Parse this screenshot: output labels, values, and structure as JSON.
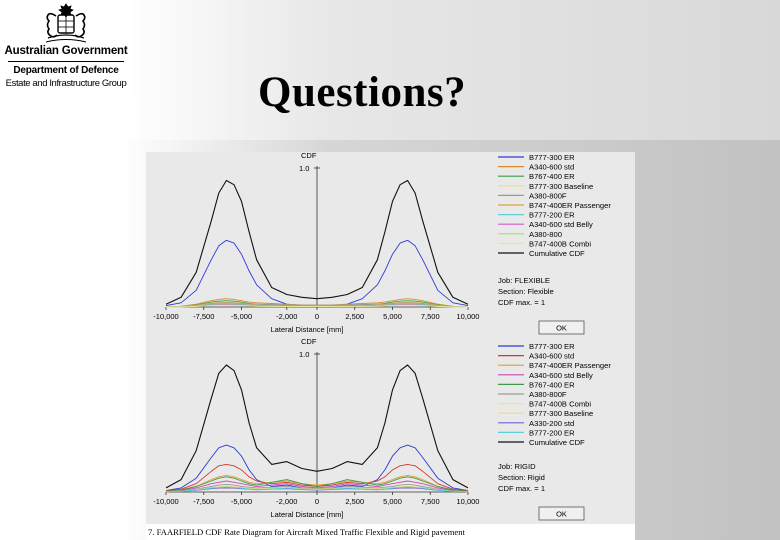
{
  "header": {
    "org_lines": [
      "Australian Government",
      "Department of Defence",
      "Estate and Infrastructure Group"
    ],
    "crest_icon": "coat-of-arms-icon"
  },
  "slide": {
    "title": "Questions?"
  },
  "figure": {
    "caption": "7.  FAARFIELD CDF Rate Diagram for Aircraft Mixed Traffic Flexible and Rigid pavement"
  },
  "chart_data": [
    {
      "type": "line",
      "title": "",
      "ylabel": "CDF",
      "xlabel": "Lateral Distance [mm]",
      "y_tick_labels": [
        "1.0"
      ],
      "x_tick_labels": [
        "-10,000",
        "-7,500",
        "-5,000",
        "-2,000",
        "0",
        "2,500",
        "5,000",
        "7,500",
        "10,000"
      ],
      "xlim": [
        -10000,
        10000
      ],
      "ylim": [
        0,
        1
      ],
      "info": {
        "job": "Job: FLEXIBLE",
        "section": "Section: Flexible",
        "cdf_max": "CDF max. = 1",
        "ok_label": "OK"
      },
      "x": [
        -10000,
        -9000,
        -8000,
        -7000,
        -6500,
        -6000,
        -5500,
        -5000,
        -4500,
        -4000,
        -3000,
        -2000,
        -1000,
        0,
        1000,
        2000,
        3000,
        4000,
        4500,
        5000,
        5500,
        6000,
        6500,
        7000,
        8000,
        9000,
        10000
      ],
      "series": [
        {
          "name": "B777-300 ER",
          "color": "#2c3cd6",
          "values": [
            0.01,
            0.03,
            0.12,
            0.34,
            0.44,
            0.48,
            0.46,
            0.38,
            0.26,
            0.16,
            0.06,
            0.02,
            0.01,
            0.01,
            0.01,
            0.02,
            0.06,
            0.16,
            0.26,
            0.38,
            0.46,
            0.48,
            0.44,
            0.34,
            0.12,
            0.03,
            0.01
          ]
        },
        {
          "name": "A340-600 std",
          "color": "#d98b2b",
          "values": [
            0,
            0.005,
            0.02,
            0.045,
            0.055,
            0.06,
            0.055,
            0.045,
            0.035,
            0.03,
            0.025,
            0.02,
            0.015,
            0.015,
            0.015,
            0.02,
            0.025,
            0.03,
            0.035,
            0.045,
            0.055,
            0.06,
            0.055,
            0.045,
            0.02,
            0.005,
            0
          ]
        },
        {
          "name": "B767-400 ER",
          "color": "#3c9a4a",
          "values": [
            0,
            0.005,
            0.015,
            0.035,
            0.042,
            0.045,
            0.042,
            0.035,
            0.025,
            0.02,
            0.015,
            0.01,
            0.01,
            0.01,
            0.01,
            0.01,
            0.015,
            0.02,
            0.025,
            0.035,
            0.042,
            0.045,
            0.042,
            0.035,
            0.015,
            0.005,
            0
          ]
        },
        {
          "name": "B777-300 Baseline",
          "color": "#f0e06a",
          "values": [
            0,
            0.004,
            0.012,
            0.028,
            0.034,
            0.036,
            0.034,
            0.028,
            0.02,
            0.014,
            0.01,
            0.008,
            0.006,
            0.006,
            0.006,
            0.008,
            0.01,
            0.014,
            0.02,
            0.028,
            0.034,
            0.036,
            0.034,
            0.028,
            0.012,
            0.004,
            0
          ]
        },
        {
          "name": "A380-800F",
          "color": "#9a9a9a",
          "values": [
            0,
            0.004,
            0.012,
            0.026,
            0.03,
            0.032,
            0.03,
            0.026,
            0.022,
            0.02,
            0.018,
            0.016,
            0.014,
            0.014,
            0.014,
            0.016,
            0.018,
            0.02,
            0.022,
            0.026,
            0.03,
            0.032,
            0.03,
            0.026,
            0.012,
            0.004,
            0
          ]
        },
        {
          "name": "B747-400ER Passenger",
          "color": "#e3a23a",
          "values": [
            0,
            0.003,
            0.01,
            0.022,
            0.026,
            0.028,
            0.026,
            0.022,
            0.016,
            0.012,
            0.01,
            0.008,
            0.006,
            0.006,
            0.006,
            0.008,
            0.01,
            0.012,
            0.016,
            0.022,
            0.026,
            0.028,
            0.026,
            0.022,
            0.01,
            0.003,
            0
          ]
        },
        {
          "name": "B777-200 ER",
          "color": "#5fd0d8",
          "values": [
            0,
            0.003,
            0.008,
            0.018,
            0.022,
            0.024,
            0.022,
            0.018,
            0.013,
            0.01,
            0.008,
            0.006,
            0.005,
            0.005,
            0.005,
            0.006,
            0.008,
            0.01,
            0.013,
            0.018,
            0.022,
            0.024,
            0.022,
            0.018,
            0.008,
            0.003,
            0
          ]
        },
        {
          "name": "A340-600 std Belly",
          "color": "#d65ac8",
          "values": [
            0,
            0.002,
            0.006,
            0.014,
            0.017,
            0.018,
            0.017,
            0.014,
            0.01,
            0.008,
            0.006,
            0.005,
            0.004,
            0.004,
            0.004,
            0.005,
            0.006,
            0.008,
            0.01,
            0.014,
            0.017,
            0.018,
            0.017,
            0.014,
            0.006,
            0.002,
            0
          ]
        },
        {
          "name": "A380-800",
          "color": "#a8e06a",
          "values": [
            0,
            0.002,
            0.005,
            0.012,
            0.014,
            0.015,
            0.014,
            0.012,
            0.009,
            0.007,
            0.006,
            0.005,
            0.004,
            0.004,
            0.004,
            0.005,
            0.006,
            0.007,
            0.009,
            0.012,
            0.014,
            0.015,
            0.014,
            0.012,
            0.005,
            0.002,
            0
          ]
        },
        {
          "name": "B747-400B Combi",
          "color": "#e6e6a0",
          "values": [
            0,
            0.001,
            0.004,
            0.009,
            0.011,
            0.012,
            0.011,
            0.009,
            0.007,
            0.005,
            0.004,
            0.003,
            0.003,
            0.003,
            0.003,
            0.003,
            0.004,
            0.005,
            0.007,
            0.009,
            0.011,
            0.012,
            0.011,
            0.009,
            0.004,
            0.001,
            0
          ]
        },
        {
          "name": "Cumulative CDF",
          "color": "#111111",
          "values": [
            0.02,
            0.07,
            0.25,
            0.62,
            0.82,
            0.91,
            0.88,
            0.76,
            0.54,
            0.34,
            0.14,
            0.09,
            0.07,
            0.06,
            0.07,
            0.09,
            0.14,
            0.34,
            0.54,
            0.76,
            0.88,
            0.91,
            0.82,
            0.62,
            0.25,
            0.07,
            0.02
          ]
        }
      ]
    },
    {
      "type": "line",
      "title": "",
      "ylabel": "CDF",
      "xlabel": "Lateral Distance [mm]",
      "y_tick_labels": [
        "1.0"
      ],
      "x_tick_labels": [
        "-10,000",
        "-7,500",
        "-5,000",
        "-2,000",
        "0",
        "2,500",
        "5,000",
        "7,500",
        "10,000"
      ],
      "xlim": [
        -10000,
        10000
      ],
      "ylim": [
        0,
        1
      ],
      "info": {
        "job": "Job: RIGID",
        "section": "Section: Rigid",
        "cdf_max": "CDF max. = 1",
        "ok_label": "OK"
      },
      "x": [
        -10000,
        -9000,
        -8000,
        -7000,
        -6500,
        -6000,
        -5500,
        -5000,
        -4500,
        -4000,
        -3000,
        -2000,
        -1000,
        0,
        1000,
        2000,
        3000,
        4000,
        4500,
        5000,
        5500,
        6000,
        6500,
        7000,
        8000,
        9000,
        10000
      ],
      "series": [
        {
          "name": "B777-300 ER",
          "color": "#2c3cd6",
          "values": [
            0.01,
            0.03,
            0.1,
            0.25,
            0.32,
            0.34,
            0.32,
            0.26,
            0.16,
            0.09,
            0.04,
            0.05,
            0.03,
            0.02,
            0.03,
            0.05,
            0.04,
            0.09,
            0.16,
            0.26,
            0.32,
            0.34,
            0.32,
            0.25,
            0.1,
            0.03,
            0.01
          ]
        },
        {
          "name": "A340-600 std",
          "color": "#d23b2b",
          "values": [
            0.01,
            0.02,
            0.06,
            0.15,
            0.19,
            0.2,
            0.19,
            0.16,
            0.11,
            0.08,
            0.06,
            0.07,
            0.05,
            0.04,
            0.05,
            0.07,
            0.06,
            0.08,
            0.11,
            0.16,
            0.19,
            0.2,
            0.19,
            0.15,
            0.06,
            0.02,
            0.01
          ]
        },
        {
          "name": "B747-400ER Passenger",
          "color": "#e0a030",
          "values": [
            0.005,
            0.015,
            0.04,
            0.09,
            0.11,
            0.12,
            0.11,
            0.09,
            0.07,
            0.06,
            0.07,
            0.08,
            0.06,
            0.05,
            0.06,
            0.08,
            0.07,
            0.06,
            0.07,
            0.09,
            0.11,
            0.12,
            0.11,
            0.09,
            0.04,
            0.015,
            0.005
          ]
        },
        {
          "name": "A340-600 std Belly",
          "color": "#c84ab8",
          "values": [
            0.004,
            0.01,
            0.03,
            0.06,
            0.07,
            0.08,
            0.07,
            0.06,
            0.05,
            0.04,
            0.05,
            0.06,
            0.04,
            0.03,
            0.04,
            0.06,
            0.05,
            0.04,
            0.05,
            0.06,
            0.07,
            0.08,
            0.07,
            0.06,
            0.03,
            0.01,
            0.004
          ]
        },
        {
          "name": "B767-400 ER",
          "color": "#3c9a4a",
          "values": [
            0.005,
            0.015,
            0.04,
            0.08,
            0.1,
            0.11,
            0.1,
            0.08,
            0.06,
            0.05,
            0.07,
            0.09,
            0.06,
            0.04,
            0.06,
            0.09,
            0.07,
            0.05,
            0.06,
            0.08,
            0.1,
            0.11,
            0.1,
            0.08,
            0.04,
            0.015,
            0.005
          ]
        },
        {
          "name": "A380-800F",
          "color": "#9a9a9a",
          "values": [
            0.003,
            0.008,
            0.02,
            0.04,
            0.05,
            0.055,
            0.05,
            0.04,
            0.035,
            0.03,
            0.035,
            0.04,
            0.03,
            0.025,
            0.03,
            0.04,
            0.035,
            0.03,
            0.035,
            0.04,
            0.05,
            0.055,
            0.05,
            0.04,
            0.02,
            0.008,
            0.003
          ]
        },
        {
          "name": "B747-400B Combi",
          "color": "#e6e6a0",
          "values": [
            0.002,
            0.006,
            0.015,
            0.03,
            0.036,
            0.04,
            0.036,
            0.03,
            0.025,
            0.02,
            0.025,
            0.03,
            0.022,
            0.018,
            0.022,
            0.03,
            0.025,
            0.02,
            0.025,
            0.03,
            0.036,
            0.04,
            0.036,
            0.03,
            0.015,
            0.006,
            0.002
          ]
        },
        {
          "name": "B777-300 Baseline",
          "color": "#f0e06a",
          "values": [
            0.002,
            0.006,
            0.016,
            0.032,
            0.038,
            0.042,
            0.038,
            0.032,
            0.026,
            0.022,
            0.026,
            0.032,
            0.024,
            0.02,
            0.024,
            0.032,
            0.026,
            0.022,
            0.026,
            0.032,
            0.038,
            0.042,
            0.038,
            0.032,
            0.016,
            0.006,
            0.002
          ]
        },
        {
          "name": "A330-200 std",
          "color": "#7a5fd0",
          "values": [
            0.002,
            0.005,
            0.012,
            0.024,
            0.028,
            0.03,
            0.028,
            0.024,
            0.02,
            0.016,
            0.02,
            0.024,
            0.018,
            0.014,
            0.018,
            0.024,
            0.02,
            0.016,
            0.02,
            0.024,
            0.028,
            0.03,
            0.028,
            0.024,
            0.012,
            0.005,
            0.002
          ]
        },
        {
          "name": "B777-200 ER",
          "color": "#5fd0d8",
          "values": [
            0.002,
            0.005,
            0.014,
            0.028,
            0.033,
            0.036,
            0.033,
            0.028,
            0.022,
            0.018,
            0.022,
            0.028,
            0.02,
            0.016,
            0.02,
            0.028,
            0.022,
            0.018,
            0.022,
            0.028,
            0.033,
            0.036,
            0.033,
            0.028,
            0.014,
            0.005,
            0.002
          ]
        },
        {
          "name": "Cumulative CDF",
          "color": "#111111",
          "values": [
            0.03,
            0.09,
            0.3,
            0.68,
            0.86,
            0.92,
            0.88,
            0.74,
            0.5,
            0.32,
            0.2,
            0.22,
            0.17,
            0.15,
            0.17,
            0.22,
            0.2,
            0.32,
            0.5,
            0.74,
            0.88,
            0.92,
            0.86,
            0.68,
            0.3,
            0.09,
            0.03
          ]
        }
      ]
    }
  ]
}
